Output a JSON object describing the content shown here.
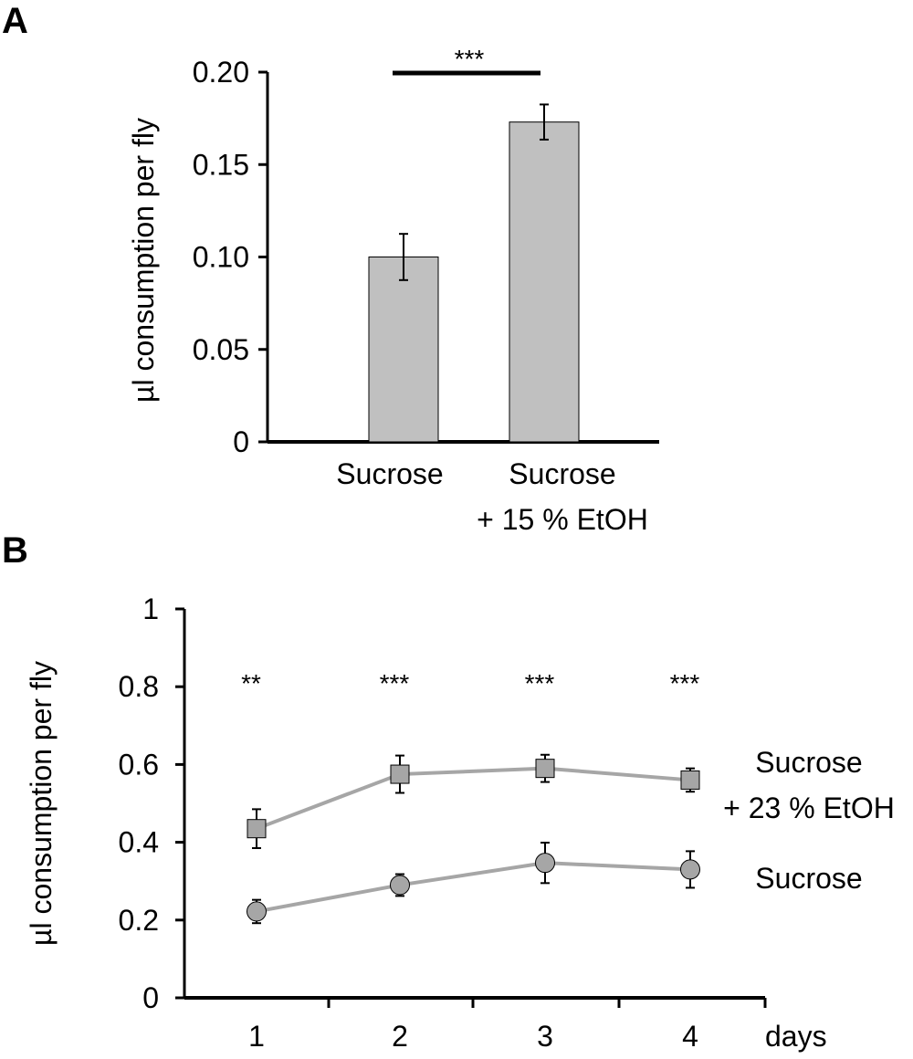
{
  "panels": [
    {
      "letter": "A",
      "chart_data": {
        "type": "bar",
        "title": "",
        "ylabel": "µl consumption per fly",
        "xlabel": "",
        "ylim": [
          0,
          0.2
        ],
        "yticks": [
          {
            "value": 0,
            "label": "0"
          },
          {
            "value": 0.05,
            "label": "0.05"
          },
          {
            "value": 0.1,
            "label": "0.10"
          },
          {
            "value": 0.15,
            "label": "0.15"
          },
          {
            "value": 0.2,
            "label": "0.20"
          }
        ],
        "categories": [
          {
            "lines": [
              "Sucrose"
            ]
          },
          {
            "lines": [
              "Sucrose",
              "+ 15 % EtOH"
            ]
          }
        ],
        "values": [
          0.1,
          0.173
        ],
        "errors": [
          0.0125,
          0.0095
        ],
        "bar_color": "#c0c0c0",
        "significance": {
          "between": [
            0,
            1
          ],
          "label": "***"
        },
        "grid": false
      }
    },
    {
      "letter": "B",
      "chart_data": {
        "type": "line",
        "title": "",
        "ylabel": "µl consumption per fly",
        "xlabel": "days",
        "ylim": [
          0,
          1
        ],
        "yticks": [
          {
            "value": 0,
            "label": "0"
          },
          {
            "value": 0.2,
            "label": "0.2"
          },
          {
            "value": 0.4,
            "label": "0.4"
          },
          {
            "value": 0.6,
            "label": "0.6"
          },
          {
            "value": 0.8,
            "label": "0.8"
          },
          {
            "value": 1,
            "label": "1"
          }
        ],
        "x": [
          1,
          2,
          3,
          4
        ],
        "xtick_labels": [
          "1",
          "2",
          "3",
          "4"
        ],
        "series": [
          {
            "lines": [
              "Sucrose",
              "+ 23 % EtOH"
            ],
            "marker": "square",
            "values": [
              0.435,
              0.575,
              0.59,
              0.56
            ],
            "errors": [
              0.05,
              0.048,
              0.035,
              0.03
            ]
          },
          {
            "lines": [
              "Sucrose"
            ],
            "marker": "circle",
            "values": [
              0.222,
              0.29,
              0.347,
              0.33
            ],
            "errors": [
              0.03,
              0.028,
              0.052,
              0.047
            ]
          }
        ],
        "significance": [
          "**",
          "***",
          "***",
          "***"
        ],
        "line_color": "#a6a6a6",
        "marker_color": "#a6a6a6",
        "grid": false
      }
    }
  ]
}
